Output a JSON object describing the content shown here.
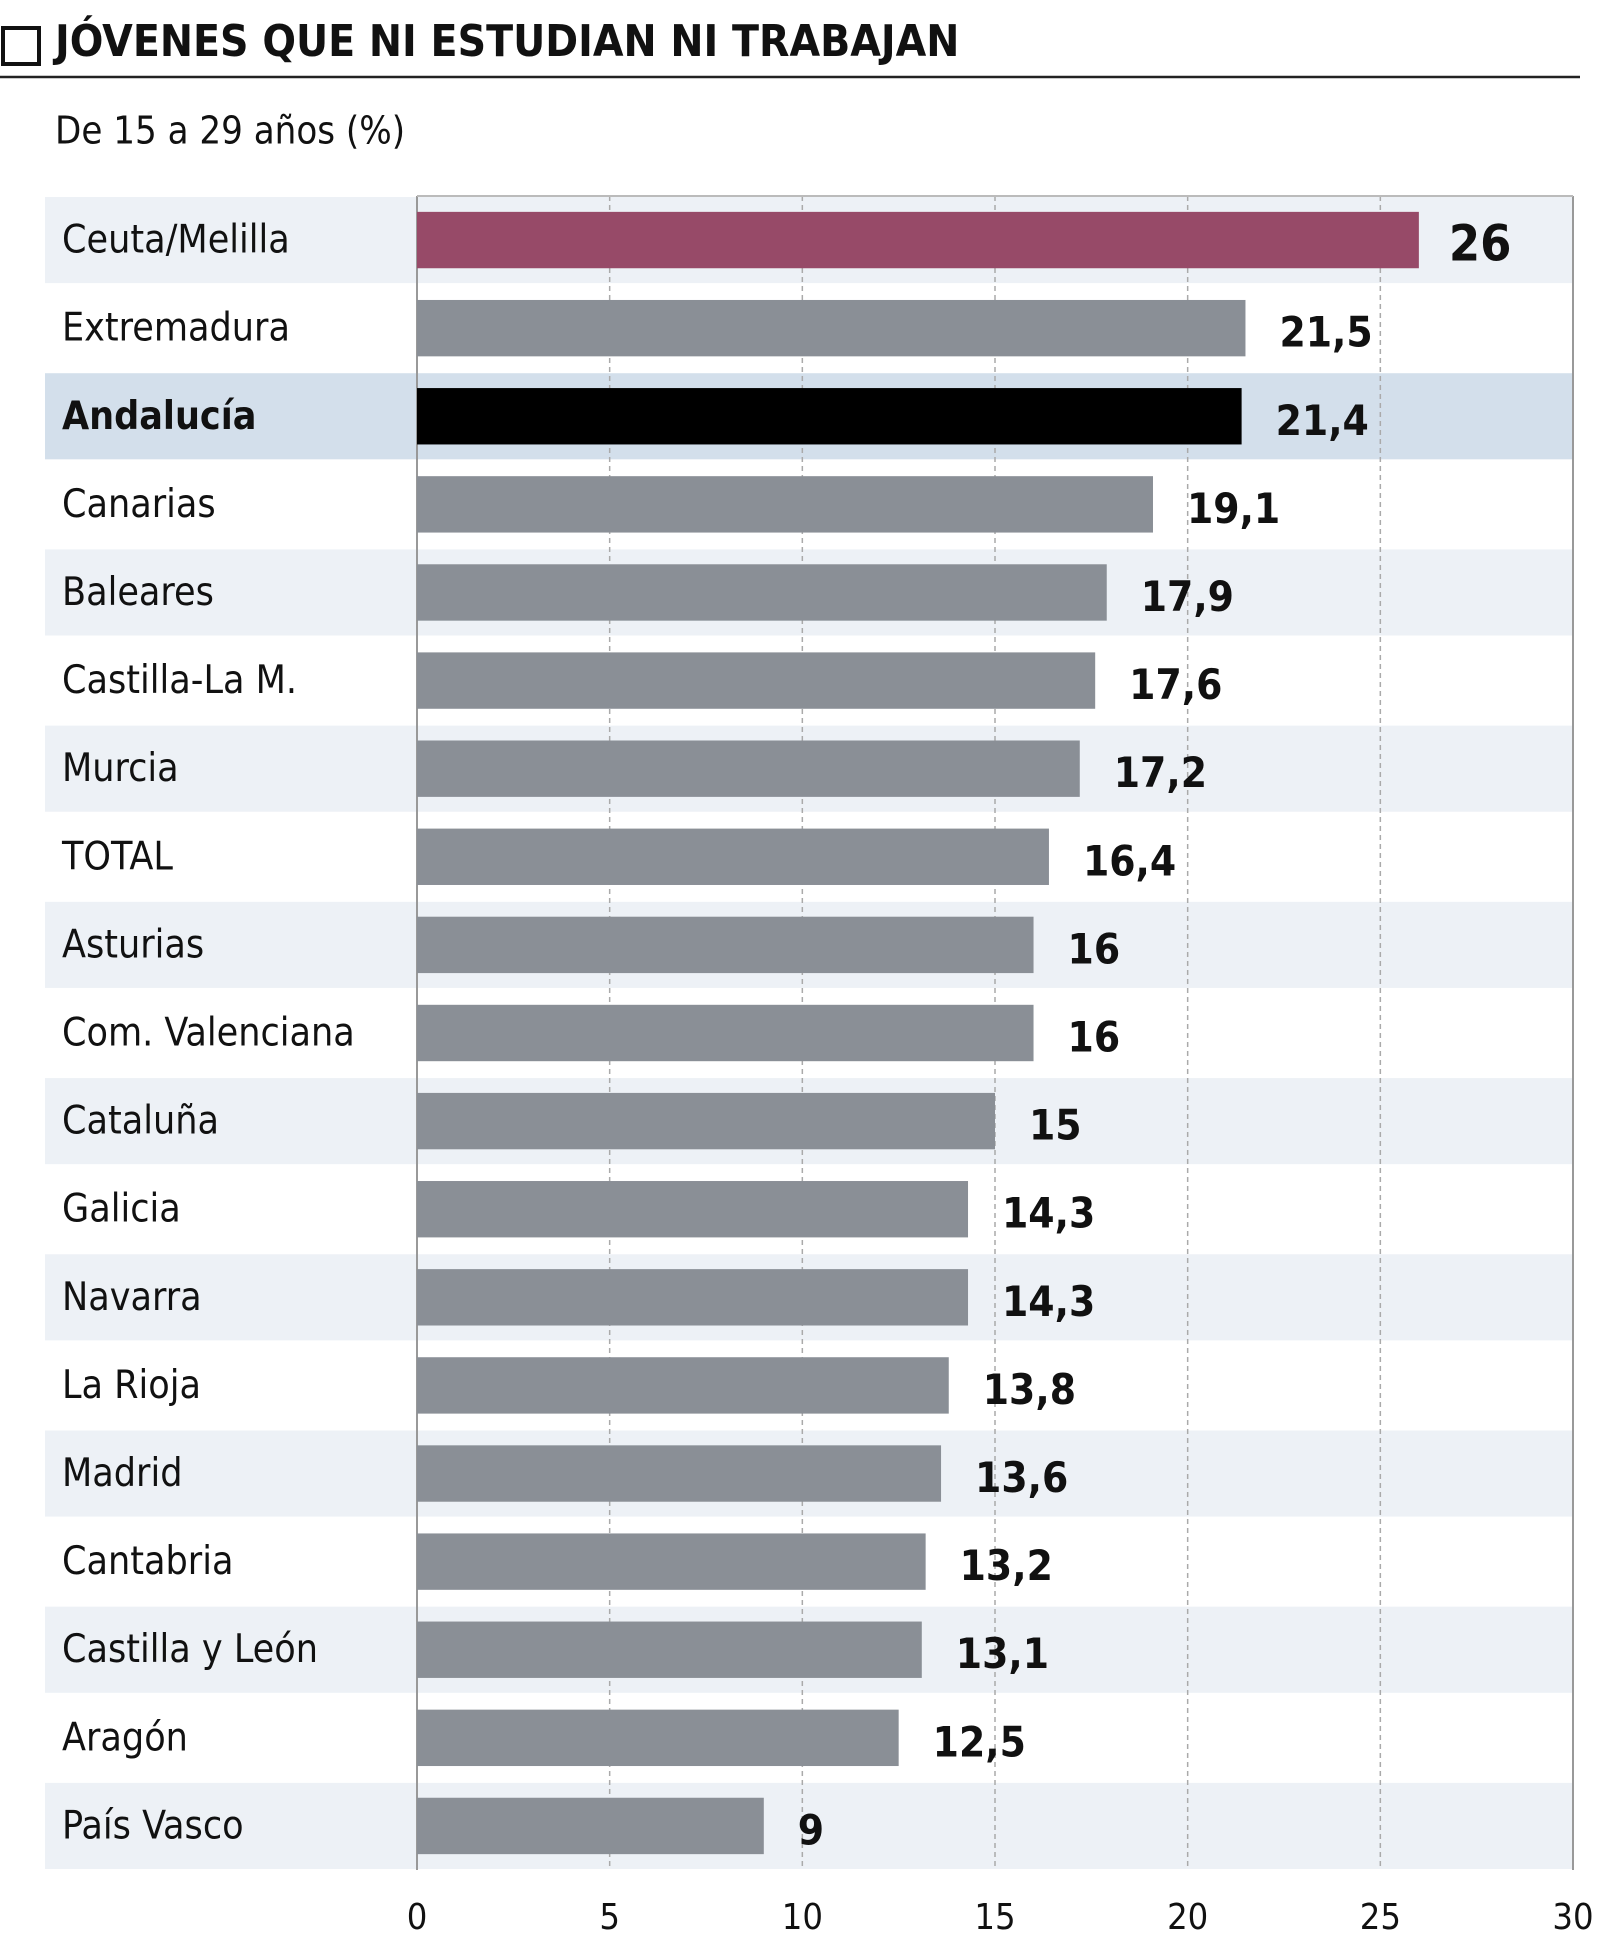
{
  "chart_data": {
    "type": "hbar",
    "title": "JÓVENES QUE NI ESTUDIAN NI TRABAJAN",
    "subtitle": "De 15 a 29 años (%)",
    "categories": [
      "Ceuta/Melilla",
      "Extremadura",
      "Andalucía",
      "Canarias",
      "Baleares",
      "Castilla-La M.",
      "Murcia",
      "TOTAL",
      "Asturias",
      "Com. Valenciana",
      "Cataluña",
      "Galicia",
      "Navarra",
      "La Rioja",
      "Madrid",
      "Cantabria",
      "Castilla y León",
      "Aragón",
      "País Vasco"
    ],
    "values": [
      26,
      21.5,
      21.4,
      19.1,
      17.9,
      17.6,
      17.2,
      16.4,
      16,
      16,
      15,
      14.3,
      14.3,
      13.8,
      13.6,
      13.2,
      13.1,
      12.5,
      9
    ],
    "value_labels": [
      "26",
      "21,5",
      "21,4",
      "19,1",
      "17,9",
      "17,6",
      "17,2",
      "16,4",
      "16",
      "16",
      "15",
      "14,3",
      "14,3",
      "13,8",
      "13,6",
      "13,2",
      "13,1",
      "12,5",
      "9"
    ],
    "colors": [
      "#974a68",
      "#8a8f96",
      "#000000",
      "#8a8f96",
      "#8a8f96",
      "#8a8f96",
      "#8a8f96",
      "#8a8f96",
      "#8a8f96",
      "#8a8f96",
      "#8a8f96",
      "#8a8f96",
      "#8a8f96",
      "#8a8f96",
      "#8a8f96",
      "#8a8f96",
      "#8a8f96",
      "#8a8f96",
      "#8a8f96"
    ],
    "highlight": 2,
    "xlim": [
      0,
      30
    ],
    "xticks": [
      0,
      5,
      10,
      15,
      20,
      25,
      30
    ],
    "grid": true
  }
}
